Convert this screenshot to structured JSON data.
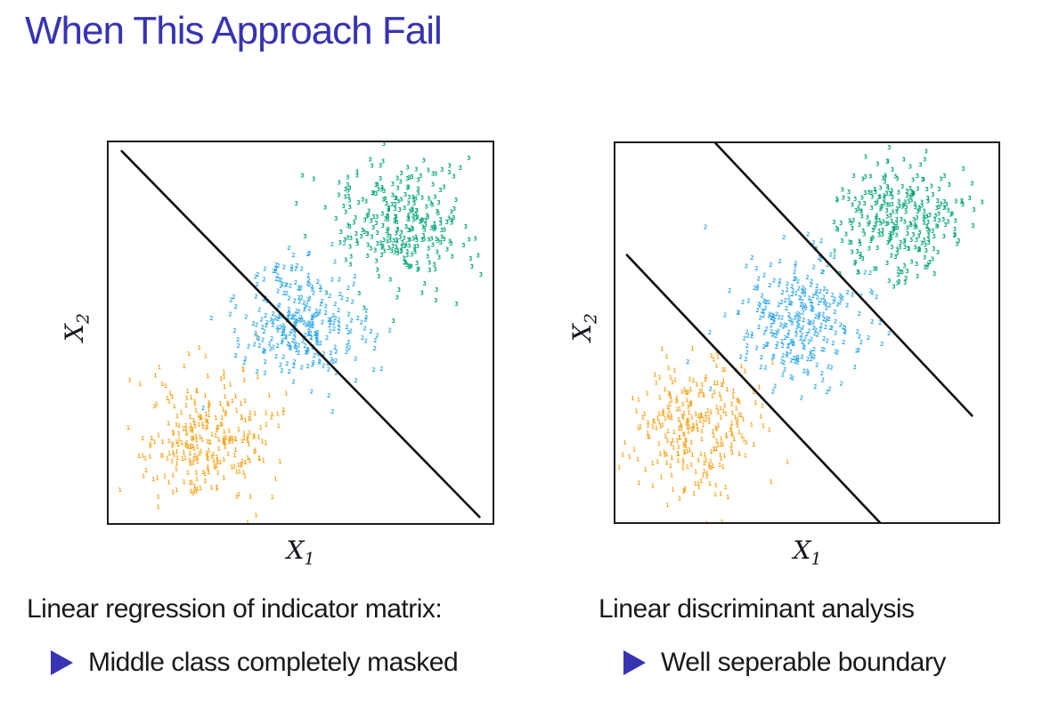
{
  "slide": {
    "title": "When This Approach Fail"
  },
  "colors": {
    "accent": "#3733b2",
    "text": "#191919",
    "background": "#ffffff",
    "plot_border": "#1c1c1c",
    "boundary": "#111111",
    "class1_orange": "#f7a41d",
    "class2_blue": "#2ba6e8",
    "class3_green": "#00a578"
  },
  "figures": [
    {
      "caption": "Linear regression of indicator matrix:",
      "bullet": "Middle class completely masked",
      "xlabel_main": "X",
      "xlabel_sub": "1",
      "ylabel_main": "X",
      "ylabel_sub": "2"
    },
    {
      "caption": "Linear discriminant analysis",
      "bullet": "Well seperable boundary",
      "xlabel_main": "X",
      "xlabel_sub": "1",
      "ylabel_main": "X",
      "ylabel_sub": "2"
    }
  ],
  "chart_data": [
    {
      "type": "scatter",
      "title": "Linear regression of indicator matrix",
      "xlabel": "X_1",
      "ylabel": "X_2",
      "axis_ticks": "none",
      "frame": "box",
      "marker": "class-digit-glyph",
      "clusters": [
        {
          "label": "1",
          "name": "class-1-orange",
          "color": "#f7a41d",
          "center": [
            0.25,
            0.22
          ],
          "sd": [
            0.085,
            0.082
          ],
          "count": 300
        },
        {
          "label": "2",
          "name": "class-2-blue",
          "color": "#2ba6e8",
          "center": [
            0.5,
            0.53
          ],
          "sd": [
            0.08,
            0.085
          ],
          "count": 300
        },
        {
          "label": "3",
          "name": "class-3-green",
          "color": "#00a578",
          "center": [
            0.76,
            0.79
          ],
          "sd": [
            0.085,
            0.078
          ],
          "count": 300
        }
      ],
      "boundaries": [
        {
          "name": "single-decision-line",
          "from": [
            0.034,
            0.977
          ],
          "to": [
            0.966,
            0.016
          ]
        }
      ]
    },
    {
      "type": "scatter",
      "title": "Linear discriminant analysis",
      "xlabel": "X_1",
      "ylabel": "X_2",
      "axis_ticks": "none",
      "frame": "box",
      "marker": "class-digit-glyph",
      "clusters": [
        {
          "label": "1",
          "name": "class-1-orange",
          "color": "#f7a41d",
          "center": [
            0.205,
            0.247
          ],
          "sd": [
            0.082,
            0.084
          ],
          "count": 300
        },
        {
          "label": "2",
          "name": "class-2-blue",
          "color": "#2ba6e8",
          "center": [
            0.479,
            0.526
          ],
          "sd": [
            0.078,
            0.084
          ],
          "count": 300
        },
        {
          "label": "3",
          "name": "class-3-green",
          "color": "#00a578",
          "center": [
            0.735,
            0.798
          ],
          "sd": [
            0.085,
            0.076
          ],
          "count": 300
        }
      ],
      "boundaries": [
        {
          "name": "upper-decision-line",
          "from": [
            0.253,
            1.009
          ],
          "to": [
            0.931,
            0.281
          ]
        },
        {
          "name": "lower-decision-line",
          "from": [
            0.03,
            0.705
          ],
          "to": [
            0.698,
            -0.009
          ]
        }
      ]
    }
  ]
}
